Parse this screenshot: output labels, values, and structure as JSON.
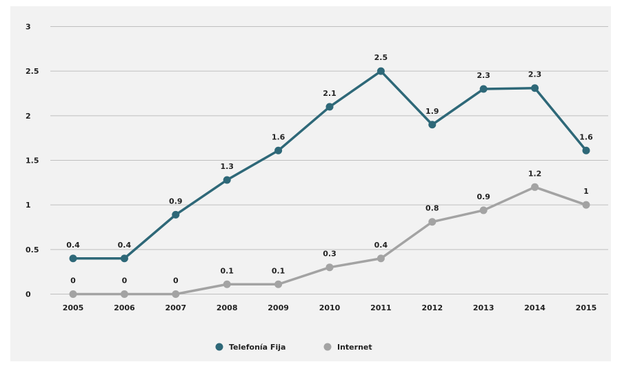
{
  "chart_data": {
    "type": "line",
    "categories": [
      "2005",
      "2006",
      "2007",
      "2008",
      "2009",
      "2010",
      "2011",
      "2012",
      "2013",
      "2014",
      "2015"
    ],
    "series": [
      {
        "name": "Telefonía Fija",
        "color": "#2e6878",
        "values": [
          0.4,
          0.4,
          0.9,
          1.3,
          1.6,
          2.1,
          2.5,
          1.9,
          2.3,
          2.3,
          1.6
        ],
        "plot_values": [
          0.4,
          0.4,
          0.89,
          1.28,
          1.61,
          2.1,
          2.5,
          1.9,
          2.3,
          2.31,
          1.61
        ]
      },
      {
        "name": "Internet",
        "color": "#a3a3a3",
        "values": [
          0,
          0,
          0,
          0.1,
          0.1,
          0.3,
          0.4,
          0.8,
          0.9,
          1.2,
          1
        ],
        "plot_values": [
          0,
          0,
          0,
          0.11,
          0.11,
          0.3,
          0.4,
          0.81,
          0.94,
          1.2,
          1
        ]
      }
    ],
    "yticks": [
      "0",
      "0.5",
      "1",
      "1.5",
      "2",
      "2.5",
      "3"
    ],
    "ylim": [
      0,
      3
    ],
    "grid": true,
    "legend_position": "bottom",
    "gridline_color": "#bfbfbf",
    "background_color": "#f2f2f2"
  }
}
